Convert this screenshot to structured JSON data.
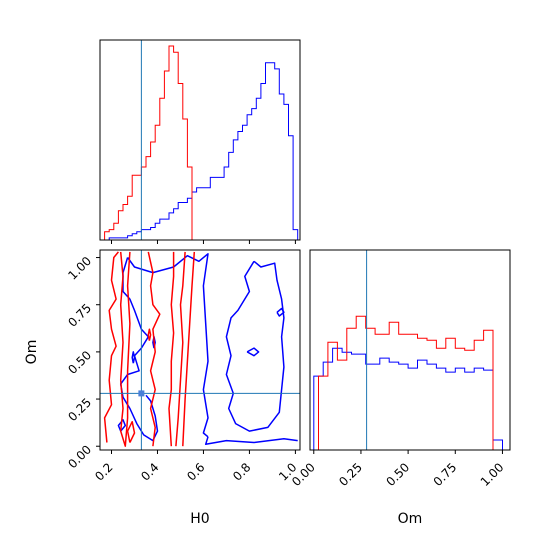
{
  "chart_data": {
    "type": "corner",
    "parameters": [
      "H0",
      "Om"
    ],
    "truth": {
      "H0": 0.33,
      "Om": 0.28
    },
    "colors": {
      "red": "#ff0000",
      "blue": "#0000ff",
      "truth": "#1f77b4"
    },
    "axes": {
      "H0": {
        "range": [
          0.15,
          1.02
        ],
        "ticks": [
          0.2,
          0.4,
          0.6,
          0.8,
          1.0
        ],
        "tick_labels": [
          "0.2",
          "0.4",
          "0.6",
          "0.8",
          "1.0"
        ],
        "label": "H0"
      },
      "Om": {
        "range": [
          -0.02,
          1.04
        ],
        "ticks": [
          0.0,
          0.25,
          0.5,
          0.75,
          1.0
        ],
        "tick_labels": [
          "0.00",
          "0.25",
          "0.50",
          "0.75",
          "1.00"
        ],
        "label": "Om"
      }
    },
    "hist_H0": {
      "edges": [
        0.15,
        0.17,
        0.19,
        0.21,
        0.23,
        0.25,
        0.27,
        0.29,
        0.31,
        0.33,
        0.35,
        0.37,
        0.39,
        0.41,
        0.43,
        0.45,
        0.47,
        0.49,
        0.51,
        0.53,
        0.55,
        0.57,
        0.59,
        0.61,
        0.63,
        0.65,
        0.67,
        0.69,
        0.71,
        0.73,
        0.75,
        0.77,
        0.79,
        0.81,
        0.83,
        0.85,
        0.87,
        0.89,
        0.91,
        0.93,
        0.95,
        0.97,
        0.99,
        1.01
      ],
      "red": [
        0,
        4,
        5,
        8,
        14,
        17,
        21,
        31,
        31,
        35,
        40,
        47,
        55,
        68,
        81,
        93,
        90,
        75,
        58,
        35,
        0,
        0,
        0,
        0,
        0,
        0,
        0,
        0,
        0,
        0,
        0,
        0,
        0,
        0,
        0,
        0,
        0,
        0,
        0,
        0,
        0,
        0,
        0
      ],
      "blue": [
        0,
        0,
        1,
        1,
        1,
        1,
        2,
        3,
        4,
        5,
        5,
        6,
        8,
        10,
        10,
        13,
        15,
        18,
        18,
        20,
        23,
        25,
        25,
        25,
        30,
        30,
        30,
        35,
        42,
        48,
        52,
        55,
        60,
        63,
        68,
        75,
        85,
        85,
        82,
        70,
        65,
        50,
        5
      ]
    },
    "hist_Om": {
      "edges": [
        0.0,
        0.025,
        0.05,
        0.075,
        0.1,
        0.125,
        0.15,
        0.175,
        0.2,
        0.225,
        0.25,
        0.275,
        0.3,
        0.325,
        0.35,
        0.375,
        0.4,
        0.425,
        0.45,
        0.475,
        0.5,
        0.525,
        0.55,
        0.575,
        0.6,
        0.625,
        0.65,
        0.675,
        0.7,
        0.725,
        0.75,
        0.775,
        0.8,
        0.825,
        0.85,
        0.875,
        0.9,
        0.925,
        0.95,
        0.975,
        1.0
      ],
      "red": [
        0,
        37,
        37,
        54,
        54,
        45,
        45,
        61,
        61,
        67,
        67,
        61,
        61,
        58,
        58,
        58,
        64,
        64,
        58,
        58,
        58,
        58,
        56,
        56,
        55,
        55,
        51,
        51,
        56,
        56,
        51,
        51,
        50,
        50,
        55,
        55,
        60,
        60,
        0,
        0
      ],
      "blue": [
        37,
        37,
        44,
        44,
        51,
        51,
        49,
        49,
        48,
        48,
        48,
        43,
        43,
        43,
        46,
        46,
        44,
        44,
        43,
        43,
        41,
        41,
        45,
        45,
        43,
        43,
        41,
        41,
        39,
        39,
        41,
        41,
        39,
        39,
        41,
        41,
        40,
        40,
        5,
        5
      ]
    },
    "contours_red": [
      [
        [
          0.24,
          1.03
        ],
        [
          0.25,
          0.9
        ],
        [
          0.24,
          0.75
        ],
        [
          0.25,
          0.55
        ],
        [
          0.24,
          0.35
        ],
        [
          0.25,
          0.2
        ],
        [
          0.24,
          0.08
        ],
        [
          0.26,
          0.0
        ],
        [
          0.27,
          0.15
        ],
        [
          0.27,
          0.4
        ],
        [
          0.28,
          0.65
        ],
        [
          0.27,
          0.85
        ],
        [
          0.28,
          1.03
        ]
      ],
      [
        [
          0.18,
          0.02
        ],
        [
          0.17,
          0.15
        ],
        [
          0.2,
          0.22
        ],
        [
          0.19,
          0.35
        ],
        [
          0.2,
          0.48
        ],
        [
          0.22,
          0.53
        ],
        [
          0.2,
          0.62
        ],
        [
          0.19,
          0.72
        ],
        [
          0.22,
          0.78
        ],
        [
          0.2,
          0.88
        ],
        [
          0.21,
          1.0
        ],
        [
          0.23,
          1.03
        ]
      ],
      [
        [
          0.36,
          1.03
        ],
        [
          0.38,
          0.92
        ],
        [
          0.37,
          0.85
        ],
        [
          0.38,
          0.75
        ],
        [
          0.41,
          0.7
        ],
        [
          0.38,
          0.62
        ],
        [
          0.39,
          0.5
        ],
        [
          0.37,
          0.4
        ],
        [
          0.39,
          0.3
        ],
        [
          0.37,
          0.2
        ],
        [
          0.39,
          0.1
        ],
        [
          0.38,
          0.0
        ]
      ],
      [
        [
          0.47,
          1.03
        ],
        [
          0.47,
          0.9
        ],
        [
          0.46,
          0.75
        ],
        [
          0.47,
          0.6
        ],
        [
          0.46,
          0.45
        ],
        [
          0.46,
          0.3
        ],
        [
          0.45,
          0.2
        ],
        [
          0.46,
          0.0
        ]
      ],
      [
        [
          0.52,
          1.03
        ],
        [
          0.51,
          0.85
        ],
        [
          0.5,
          0.75
        ],
        [
          0.51,
          0.55
        ],
        [
          0.5,
          0.35
        ],
        [
          0.49,
          0.15
        ],
        [
          0.48,
          0.0
        ]
      ],
      [
        [
          0.56,
          1.03
        ],
        [
          0.55,
          0.85
        ],
        [
          0.54,
          0.65
        ],
        [
          0.53,
          0.45
        ],
        [
          0.52,
          0.25
        ],
        [
          0.51,
          0.0
        ]
      ],
      [
        [
          0.28,
          0.02
        ],
        [
          0.3,
          0.07
        ],
        [
          0.29,
          0.13
        ],
        [
          0.27,
          0.08
        ],
        [
          0.28,
          0.02
        ]
      ],
      [
        [
          0.365,
          0.56
        ],
        [
          0.37,
          0.59
        ],
        [
          0.365,
          0.62
        ],
        [
          0.36,
          0.59
        ],
        [
          0.365,
          0.56
        ]
      ]
    ],
    "contours_blue": [
      [
        [
          0.62,
          0.05
        ],
        [
          0.61,
          0.01
        ],
        [
          0.7,
          0.03
        ],
        [
          0.82,
          0.02
        ],
        [
          0.95,
          0.04
        ],
        [
          1.01,
          0.03
        ]
      ],
      [
        [
          0.27,
          1.0
        ],
        [
          0.3,
          0.95
        ],
        [
          0.38,
          0.92
        ],
        [
          0.47,
          0.95
        ],
        [
          0.53,
          1.01
        ],
        [
          0.58,
          0.98
        ],
        [
          0.62,
          1.02
        ],
        [
          0.6,
          0.85
        ],
        [
          0.61,
          0.65
        ],
        [
          0.62,
          0.45
        ],
        [
          0.6,
          0.3
        ],
        [
          0.62,
          0.15
        ],
        [
          0.6,
          0.07
        ],
        [
          0.62,
          0.05
        ]
      ],
      [
        [
          0.27,
          1.0
        ],
        [
          0.25,
          0.92
        ],
        [
          0.25,
          0.82
        ],
        [
          0.28,
          0.78
        ],
        [
          0.3,
          0.72
        ],
        [
          0.33,
          0.62
        ],
        [
          0.36,
          0.58
        ],
        [
          0.33,
          0.52
        ],
        [
          0.3,
          0.48
        ],
        [
          0.32,
          0.4
        ],
        [
          0.27,
          0.38
        ],
        [
          0.24,
          0.33
        ],
        [
          0.25,
          0.26
        ],
        [
          0.28,
          0.2
        ],
        [
          0.31,
          0.12
        ],
        [
          0.34,
          0.06
        ],
        [
          0.38,
          0.03
        ],
        [
          0.4,
          0.08
        ],
        [
          0.39,
          0.16
        ],
        [
          0.37,
          0.24
        ],
        [
          0.35,
          0.27
        ]
      ],
      [
        [
          0.82,
          0.98
        ],
        [
          0.85,
          0.95
        ],
        [
          0.91,
          0.97
        ],
        [
          0.92,
          0.88
        ],
        [
          0.94,
          0.78
        ],
        [
          0.95,
          0.68
        ],
        [
          0.94,
          0.58
        ],
        [
          0.95,
          0.42
        ],
        [
          0.94,
          0.3
        ],
        [
          0.93,
          0.18
        ],
        [
          0.88,
          0.1
        ],
        [
          0.8,
          0.08
        ],
        [
          0.74,
          0.12
        ],
        [
          0.71,
          0.2
        ],
        [
          0.73,
          0.28
        ],
        [
          0.7,
          0.38
        ],
        [
          0.72,
          0.48
        ],
        [
          0.7,
          0.58
        ],
        [
          0.72,
          0.68
        ],
        [
          0.75,
          0.72
        ],
        [
          0.8,
          0.82
        ],
        [
          0.78,
          0.9
        ],
        [
          0.82,
          0.98
        ]
      ],
      [
        [
          0.295,
          0.44
        ],
        [
          0.3,
          0.47
        ],
        [
          0.295,
          0.5
        ],
        [
          0.29,
          0.47
        ],
        [
          0.295,
          0.44
        ]
      ],
      [
        [
          0.385,
          0.52
        ],
        [
          0.39,
          0.55
        ],
        [
          0.385,
          0.58
        ],
        [
          0.38,
          0.55
        ],
        [
          0.385,
          0.52
        ]
      ],
      [
        [
          0.79,
          0.5
        ],
        [
          0.82,
          0.52
        ],
        [
          0.84,
          0.5
        ],
        [
          0.82,
          0.48
        ],
        [
          0.79,
          0.5
        ]
      ],
      [
        [
          0.92,
          0.71
        ],
        [
          0.94,
          0.73
        ],
        [
          0.95,
          0.71
        ],
        [
          0.93,
          0.69
        ],
        [
          0.92,
          0.71
        ]
      ],
      [
        [
          0.24,
          0.08
        ],
        [
          0.26,
          0.11
        ],
        [
          0.25,
          0.14
        ],
        [
          0.23,
          0.11
        ],
        [
          0.24,
          0.08
        ]
      ]
    ],
    "grid": false,
    "legend": "none"
  }
}
